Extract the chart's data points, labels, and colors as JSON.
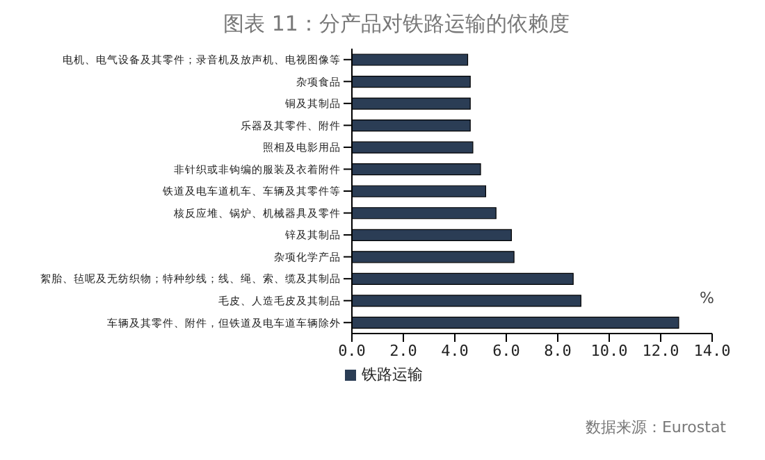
{
  "chart_data": {
    "type": "bar",
    "orientation": "horizontal",
    "title": "图表 11：分产品对铁路运输的依赖度",
    "xlabel": "%",
    "categories": [
      "电机、电气设备及其零件；录音机及放声机、电视图像等",
      "杂项食品",
      "铜及其制品",
      "乐器及其零件、附件",
      "照相及电影用品",
      "非针织或非钩编的服装及衣着附件",
      "铁道及电车道机车、车辆及其零件等",
      "核反应堆、锅炉、机械器具及零件",
      "锌及其制品",
      "杂项化学产品",
      "絮胎、毡呢及无纺织物；特种纱线；线、绳、索、缆及其制品",
      "毛皮、人造毛皮及其制品",
      "车辆及其零件、附件，但铁道及电车道车辆除外"
    ],
    "series": [
      {
        "name": "铁路运输",
        "color": "#2b3d55",
        "values": [
          4.5,
          4.6,
          4.6,
          4.6,
          4.7,
          5.0,
          5.2,
          5.6,
          6.2,
          6.3,
          8.6,
          8.9,
          12.7
        ]
      }
    ],
    "xlim": [
      0,
      14
    ],
    "xticks": [
      {
        "value": 0,
        "label": "0.0"
      },
      {
        "value": 2,
        "label": "2.0"
      },
      {
        "value": 4,
        "label": "4.0"
      },
      {
        "value": 6,
        "label": "6.0"
      },
      {
        "value": 8,
        "label": "8.0"
      },
      {
        "value": 10,
        "label": "10.0"
      },
      {
        "value": 12,
        "label": "12.0"
      },
      {
        "value": 14,
        "label": "14.0"
      }
    ],
    "legend": "bottom left",
    "grid": false,
    "annotations": [
      "数据来源：Eurostat"
    ]
  }
}
